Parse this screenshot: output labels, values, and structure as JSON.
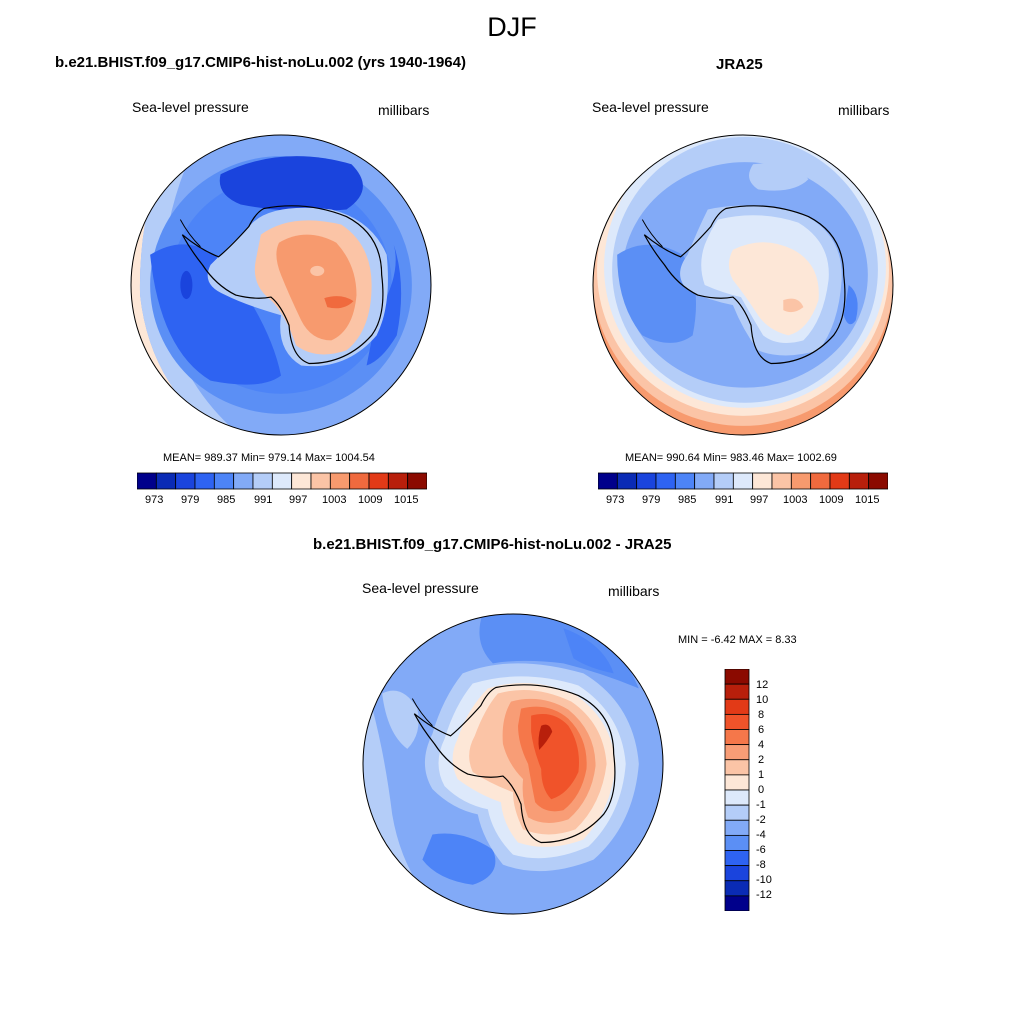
{
  "page": {
    "title": "DJF"
  },
  "panels": [
    {
      "title": "b.e21.BHIST.f09_g17.CMIP6-hist-noLu.002 (yrs 1940-1964)",
      "variable": "Sea-level pressure",
      "units": "millibars",
      "stats": "MEAN= 989.37  Min= 979.14  Max= 1004.54",
      "colorbar_labels": [
        "973",
        "979",
        "985",
        "991",
        "997",
        "1003",
        "1009",
        "1015"
      ]
    },
    {
      "title": "JRA25",
      "variable": "Sea-level pressure",
      "units": "millibars",
      "stats": "MEAN= 990.64  Min= 983.46  Max= 1002.69",
      "colorbar_labels": [
        "973",
        "979",
        "985",
        "991",
        "997",
        "1003",
        "1009",
        "1015"
      ]
    },
    {
      "title": "b.e21.BHIST.f09_g17.CMIP6-hist-noLu.002 - JRA25",
      "variable": "Sea-level pressure",
      "units": "millibars",
      "stats": "MIN =  -6.42 MAX =   8.33",
      "colorbar_labels": [
        "12",
        "10",
        "8",
        "6",
        "4",
        "2",
        "1",
        "0",
        "-1",
        "-2",
        "-4",
        "-6",
        "-8",
        "-10",
        "-12"
      ]
    }
  ],
  "colors": {
    "abs_scale": [
      "#00008b",
      "#0a2bb5",
      "#1a44dd",
      "#2e63f2",
      "#4d84f7",
      "#82aaf7",
      "#b4cdf8",
      "#dde9fb",
      "#fde7d7",
      "#fbc4a6",
      "#f79a6e",
      "#f06a3e",
      "#e23a17",
      "#b81f0b",
      "#8b0a00"
    ],
    "diff_scale": [
      "#8b0a00",
      "#b81f0b",
      "#e23a17",
      "#f0532a",
      "#f5774a",
      "#f89d76",
      "#fbc4a6",
      "#fde7d7",
      "#dde9fb",
      "#b4cdf8",
      "#82aaf7",
      "#5b8ff5",
      "#2e63f2",
      "#1a44dd",
      "#0a2bb5",
      "#00008b"
    ]
  }
}
